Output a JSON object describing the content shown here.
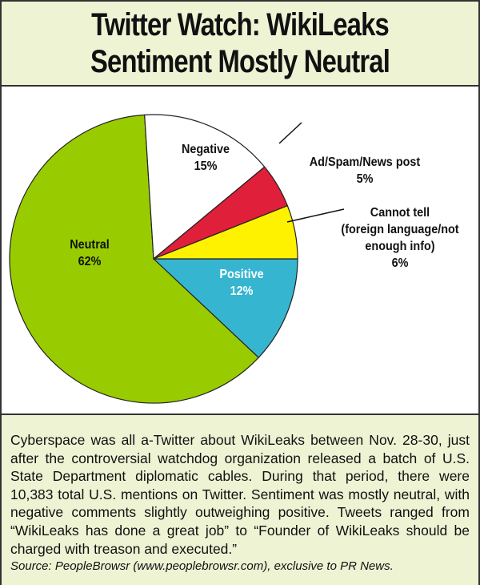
{
  "title_line1": "Twitter Watch: WikiLeaks",
  "title_line2": "Sentiment Mostly Neutral",
  "chart_data": {
    "type": "pie",
    "title": "Twitter Watch: WikiLeaks Sentiment Mostly Neutral",
    "slices": [
      {
        "name": "Positive",
        "value": 12,
        "label": "12%",
        "color": "#35b5d0"
      },
      {
        "name": "Neutral",
        "value": 62,
        "label": "62%",
        "color": "#99cc00"
      },
      {
        "name": "Negative",
        "value": 15,
        "label": "15%",
        "color": "#ffffff"
      },
      {
        "name": "Ad/Spam/News post",
        "value": 5,
        "label": "5%",
        "color": "#e01f3a"
      },
      {
        "name": "Cannot tell",
        "name_line2": "(foreign language/not",
        "name_line3": "enough info)",
        "value": 6,
        "label": "6%",
        "color": "#fff200"
      }
    ],
    "start": "3 o'clock, clockwise"
  },
  "body_text": "Cyberspace was all a-Twitter about WikiLeaks between Nov. 28-30, just after the controversial watchdog organization released a batch of U.S. State Department diplomatic cables. During that period, there were 10,383 total U.S. mentions on Twitter. Sentiment was mostly neutral, with negative comments slightly outweighing positive. Tweets ranged from “WikiLeaks has done a great job” to “Founder of WikiLeaks should be charged with treason and executed.”",
  "source": "Source: PeopleBrowsr (www.peoplebrowsr.com), exclusive to PR News."
}
